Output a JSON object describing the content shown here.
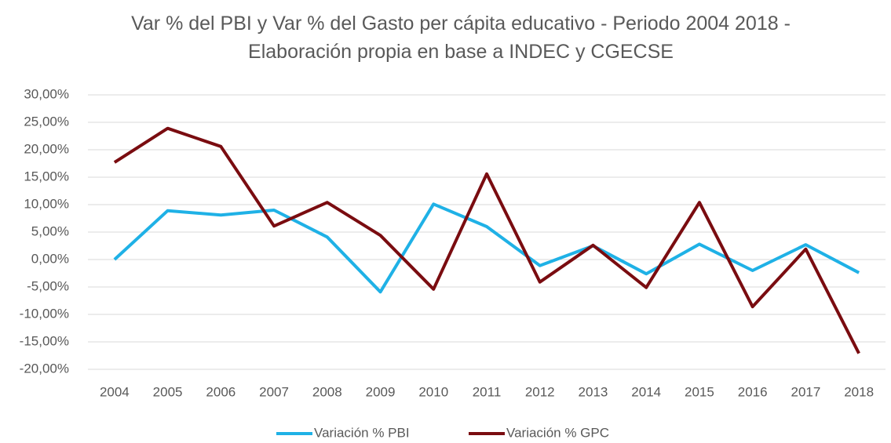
{
  "chart_data": {
    "type": "line",
    "title": "Var % del PBI y Var % del Gasto per cápita educativo - Periodo 2004 2018 - Elaboración propia en base a INDEC y CGECSE",
    "categories": [
      "2004",
      "2005",
      "2006",
      "2007",
      "2008",
      "2009",
      "2010",
      "2011",
      "2012",
      "2013",
      "2014",
      "2015",
      "2016",
      "2017",
      "2018"
    ],
    "series": [
      {
        "name": "Variación % PBI",
        "color": "#1fb1e6",
        "values": [
          0.0,
          8.9,
          8.1,
          9.0,
          4.1,
          -5.9,
          10.1,
          6.0,
          -1.1,
          2.5,
          -2.6,
          2.8,
          -2.0,
          2.7,
          -2.4
        ]
      },
      {
        "name": "Variación % GPC",
        "color": "#7a0c10",
        "values": [
          17.7,
          23.9,
          20.6,
          6.1,
          10.4,
          4.4,
          -5.4,
          15.6,
          -4.1,
          2.6,
          -5.1,
          10.4,
          -8.6,
          1.9,
          -17.1
        ]
      }
    ],
    "ylim": [
      -20,
      30
    ],
    "yticks": [
      {
        "value": -20,
        "label": "-20,00%"
      },
      {
        "value": -15,
        "label": "-15,00%"
      },
      {
        "value": -10,
        "label": "-10,00%"
      },
      {
        "value": -5,
        "label": "-5,00%"
      },
      {
        "value": 0,
        "label": "0,00%"
      },
      {
        "value": 5,
        "label": "5,00%"
      },
      {
        "value": 10,
        "label": "10,00%"
      },
      {
        "value": 15,
        "label": "15,00%"
      },
      {
        "value": 20,
        "label": "20,00%"
      },
      {
        "value": 25,
        "label": "25,00%"
      },
      {
        "value": 30,
        "label": "30,00%"
      }
    ],
    "grid": true,
    "legend": "bottom"
  }
}
